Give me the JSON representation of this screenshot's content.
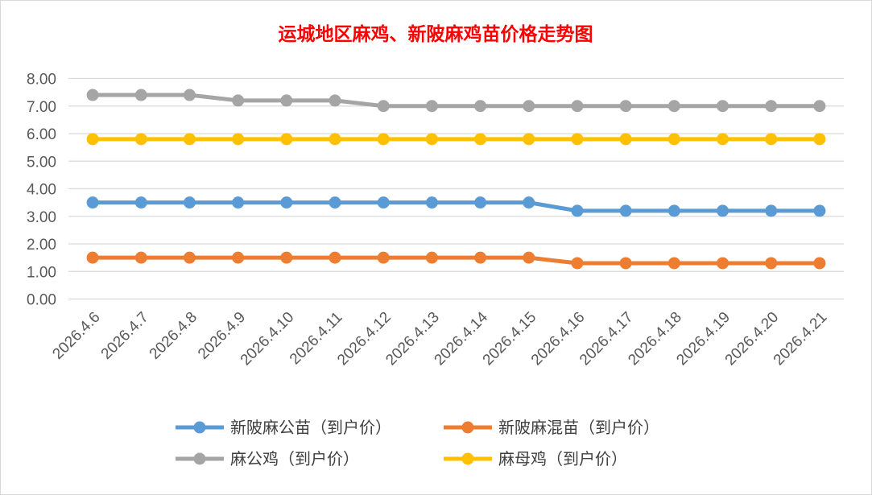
{
  "chart_data": {
    "type": "line",
    "title": "运城地区麻鸡、新陂麻鸡苗价格走势图",
    "xlabel": "",
    "ylabel": "",
    "ylim": [
      0,
      8
    ],
    "yticks": [
      "0.00",
      "1.00",
      "2.00",
      "3.00",
      "4.00",
      "5.00",
      "6.00",
      "7.00",
      "8.00"
    ],
    "grid": true,
    "legend_position": "bottom",
    "categories": [
      "2026.4.6",
      "2026.4.7",
      "2026.4.8",
      "2026.4.9",
      "2026.4.10",
      "2026.4.11",
      "2026.4.12",
      "2026.4.13",
      "2026.4.14",
      "2026.4.15",
      "2026.4.16",
      "2026.4.17",
      "2026.4.18",
      "2026.4.19",
      "2026.4.20",
      "2026.4.21"
    ],
    "series": [
      {
        "name": "新陂麻公苗（到户价）",
        "color": "#5b9bd5",
        "values": [
          3.5,
          3.5,
          3.5,
          3.5,
          3.5,
          3.5,
          3.5,
          3.5,
          3.5,
          3.5,
          3.2,
          3.2,
          3.2,
          3.2,
          3.2,
          3.2
        ]
      },
      {
        "name": "新陂麻混苗（到户价）",
        "color": "#ed7d31",
        "values": [
          1.5,
          1.5,
          1.5,
          1.5,
          1.5,
          1.5,
          1.5,
          1.5,
          1.5,
          1.5,
          1.3,
          1.3,
          1.3,
          1.3,
          1.3,
          1.3
        ]
      },
      {
        "name": "麻公鸡（到户价）",
        "color": "#a5a5a5",
        "values": [
          7.4,
          7.4,
          7.4,
          7.2,
          7.2,
          7.2,
          7.0,
          7.0,
          7.0,
          7.0,
          7.0,
          7.0,
          7.0,
          7.0,
          7.0,
          7.0
        ]
      },
      {
        "name": "麻母鸡（到户价）",
        "color": "#ffc000",
        "values": [
          5.8,
          5.8,
          5.8,
          5.8,
          5.8,
          5.8,
          5.8,
          5.8,
          5.8,
          5.8,
          5.8,
          5.8,
          5.8,
          5.8,
          5.8,
          5.8
        ]
      }
    ]
  }
}
